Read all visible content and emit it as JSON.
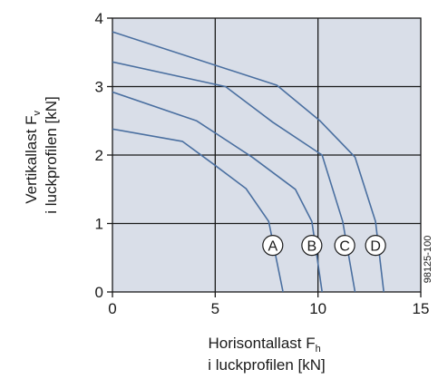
{
  "chart_data": {
    "type": "line",
    "xlabel_line1": "Horisontallast F",
    "xlabel_sub": "h",
    "xlabel_line2": "i luckprofilen [kN]",
    "ylabel_line1": "Vertikallast F",
    "ylabel_sub": "v",
    "ylabel_line2": "i luckprofilen [kN]",
    "figure_code": "98125-100",
    "xlim": [
      0,
      15
    ],
    "ylim": [
      0,
      4
    ],
    "x_ticks": [
      0,
      5,
      10,
      15
    ],
    "y_ticks": [
      0,
      1,
      2,
      3,
      4
    ],
    "grid": true,
    "colors": {
      "plot_background": "#d9dee8",
      "grid": "#1a1a1a",
      "curve": "#4a6fa0",
      "marker_fill": "#ffffff",
      "text": "#1a1a1a"
    },
    "series": [
      {
        "name": "A",
        "points": [
          [
            0,
            2.38
          ],
          [
            3.4,
            2.2
          ],
          [
            4.9,
            1.87
          ],
          [
            6.5,
            1.51
          ],
          [
            7.6,
            1.03
          ],
          [
            8.3,
            0
          ]
        ],
        "label_at": [
          7.8,
          0.68
        ]
      },
      {
        "name": "B",
        "points": [
          [
            0,
            2.92
          ],
          [
            4.1,
            2.5
          ],
          [
            6.8,
            1.97
          ],
          [
            8.9,
            1.5
          ],
          [
            9.7,
            1.03
          ],
          [
            10.2,
            0
          ]
        ],
        "label_at": [
          9.7,
          0.68
        ]
      },
      {
        "name": "C",
        "points": [
          [
            0,
            3.36
          ],
          [
            5.5,
            3.0
          ],
          [
            7.8,
            2.48
          ],
          [
            10.2,
            2.0
          ],
          [
            11.2,
            1.03
          ],
          [
            11.8,
            0
          ]
        ],
        "label_at": [
          11.3,
          0.68
        ]
      },
      {
        "name": "D",
        "points": [
          [
            0,
            3.8
          ],
          [
            8.0,
            3.02
          ],
          [
            10.1,
            2.5
          ],
          [
            11.8,
            1.97
          ],
          [
            12.8,
            1.03
          ],
          [
            13.2,
            0
          ]
        ],
        "label_at": [
          12.8,
          0.68
        ]
      }
    ]
  }
}
